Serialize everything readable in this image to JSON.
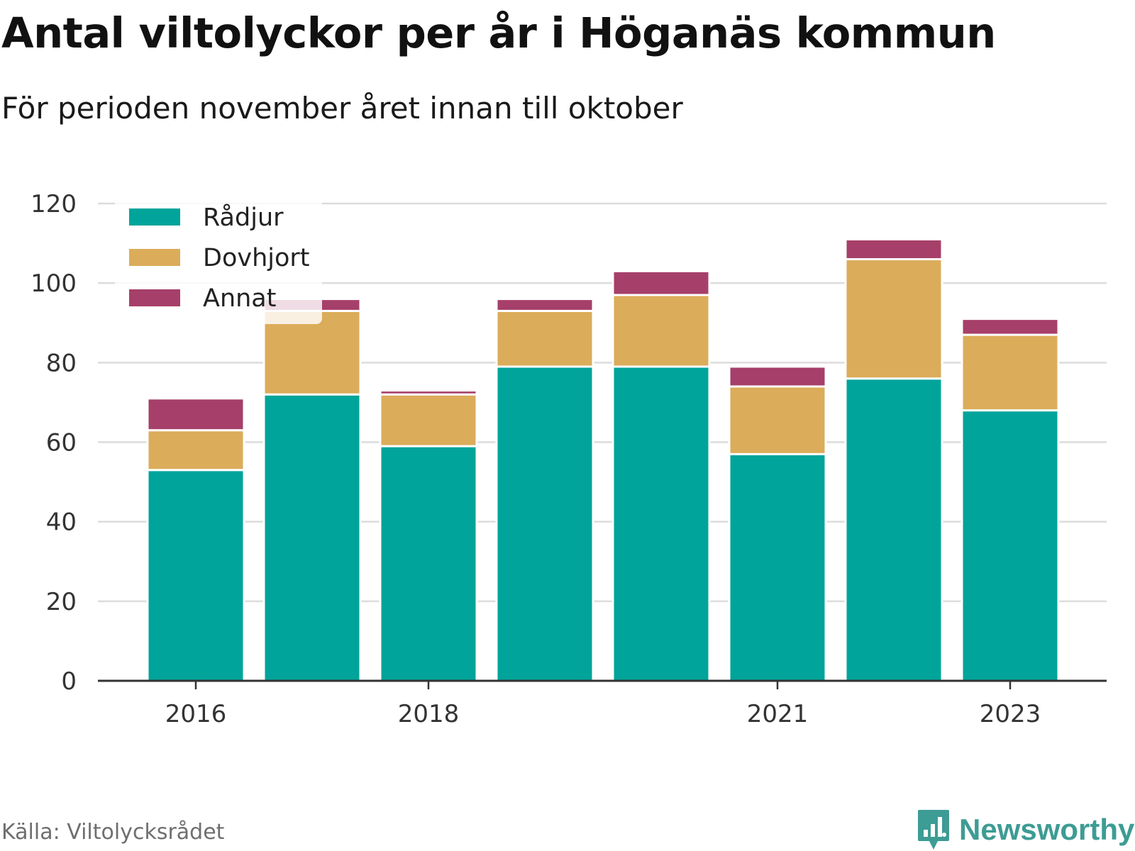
{
  "title": "Antal viltolyckor per år i Höganäs kommun",
  "subtitle": "För perioden november året innan till oktober",
  "source": "Källa: Viltolycksrådet",
  "brand": {
    "name": "Newsworthy",
    "logo_icon": "newsworthy-logo-icon",
    "color": "#3d9c94"
  },
  "chart_data": {
    "type": "bar",
    "stacked": true,
    "categories": [
      "2016",
      "2017",
      "2018",
      "2019",
      "2020",
      "2021",
      "2022",
      "2023"
    ],
    "x_tick_labels": [
      "2016",
      "2018",
      "2021",
      "2023"
    ],
    "y_ticks": [
      0,
      20,
      40,
      60,
      80,
      100,
      120
    ],
    "ylim": [
      0,
      120
    ],
    "grid": true,
    "legend_position": "top-left",
    "series": [
      {
        "name": "Rådjur",
        "color": "#00a49a",
        "values": [
          53,
          72,
          59,
          79,
          79,
          57,
          76,
          68
        ]
      },
      {
        "name": "Dovhjort",
        "color": "#dbac5a",
        "values": [
          10,
          21,
          13,
          14,
          18,
          17,
          30,
          19
        ]
      },
      {
        "name": "Annat",
        "color": "#a63f69",
        "values": [
          8,
          3,
          1,
          3,
          6,
          5,
          5,
          4
        ]
      }
    ]
  }
}
